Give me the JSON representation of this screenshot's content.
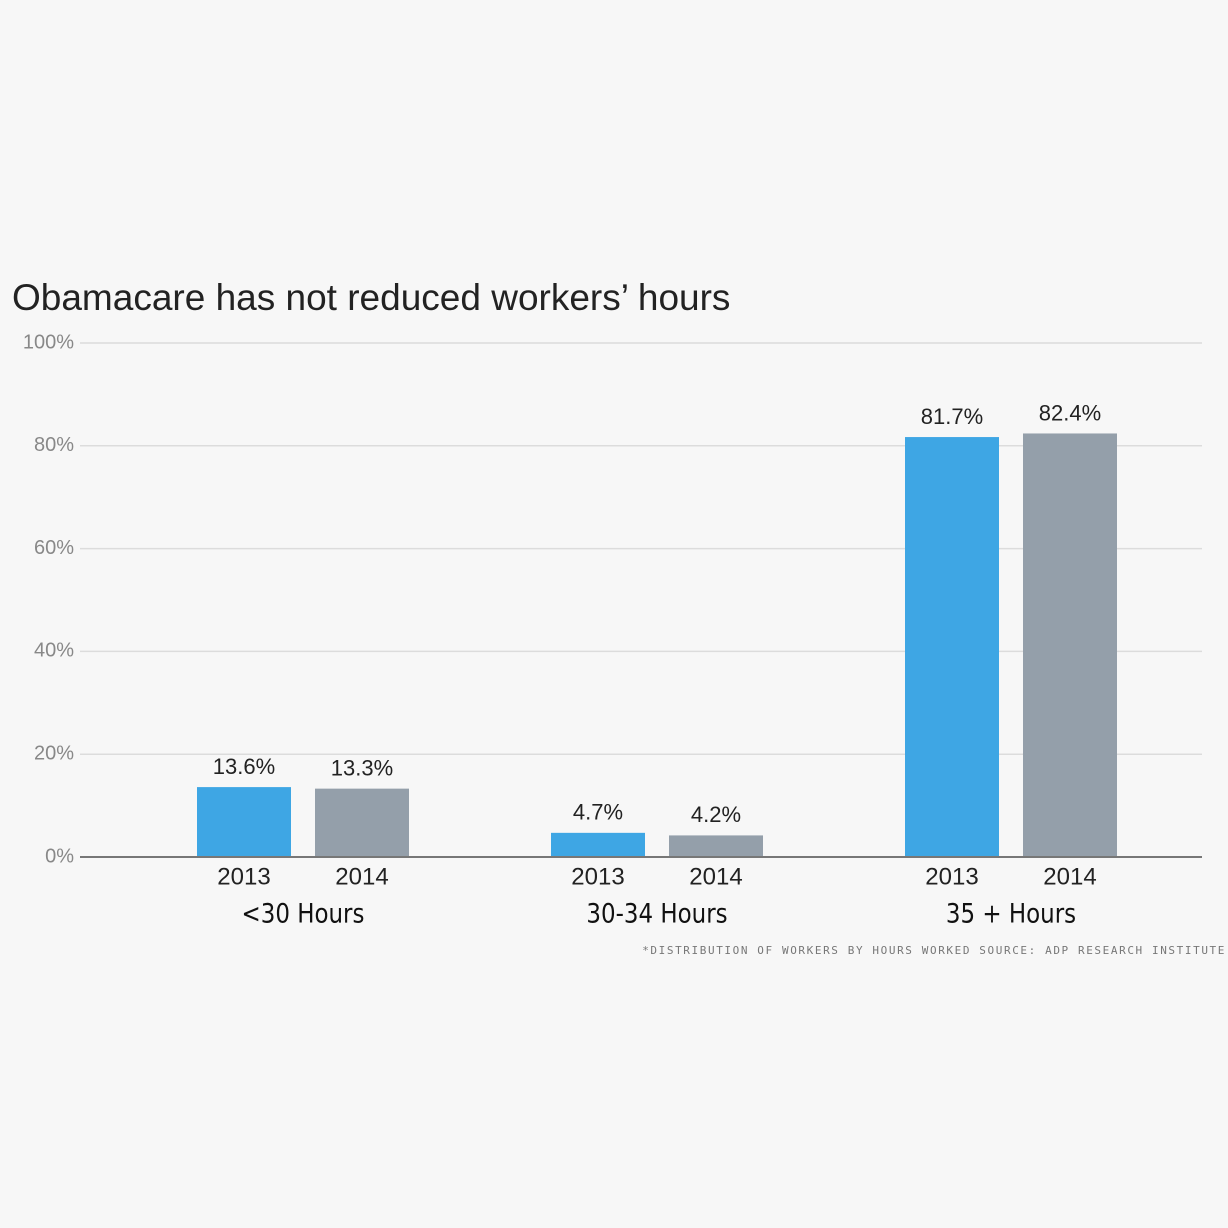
{
  "chart_data": {
    "type": "bar",
    "title": "Obamacare has not reduced workers’ hours",
    "categories": [
      "<30 Hours",
      "30-34 Hours",
      "35 + Hours"
    ],
    "series": [
      {
        "name": "2013",
        "color": "#3ea6e4",
        "values": [
          13.6,
          4.7,
          81.7
        ],
        "value_labels": [
          "13.6%",
          "4.7%",
          "81.7%"
        ]
      },
      {
        "name": "2014",
        "color": "#949faa",
        "values": [
          13.3,
          4.2,
          82.4
        ],
        "value_labels": [
          "13.3%",
          "4.2%",
          "82.4%"
        ]
      }
    ],
    "ylim": [
      0,
      100
    ],
    "yticks": [
      {
        "value": 0,
        "label": "0%"
      },
      {
        "value": 20,
        "label": "20%"
      },
      {
        "value": 40,
        "label": "40%"
      },
      {
        "value": 60,
        "label": "60%"
      },
      {
        "value": 80,
        "label": "80%"
      },
      {
        "value": 100,
        "label": "100%"
      }
    ],
    "grid": true,
    "footnote": "*DISTRIBUTION OF WORKERS BY HOURS WORKED  SOURCE: ADP RESEARCH INSTITUTE"
  }
}
